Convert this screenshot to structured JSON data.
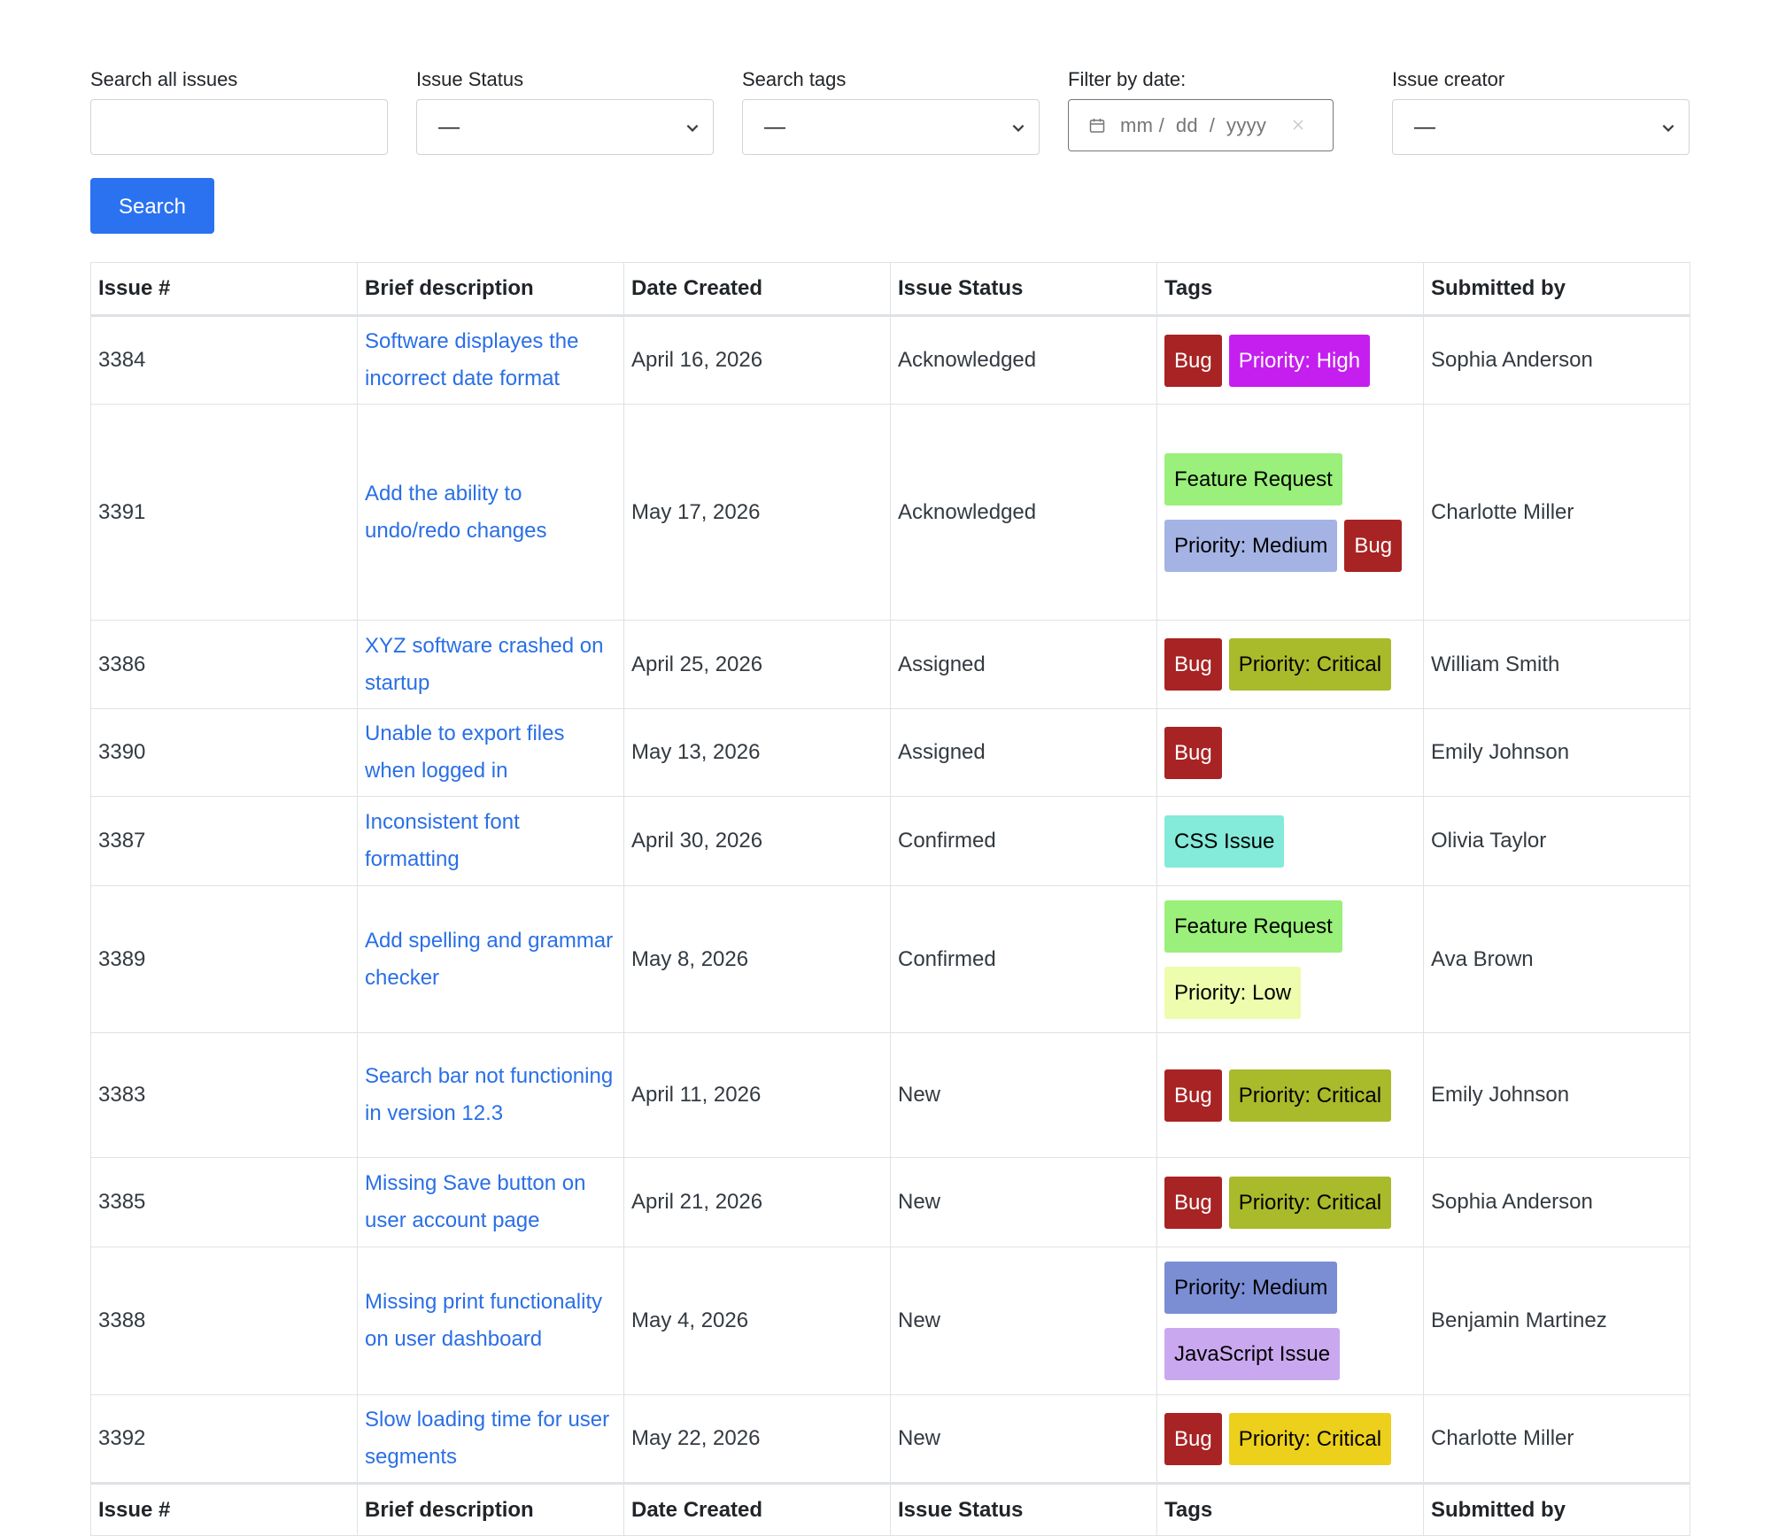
{
  "filters": {
    "search": {
      "label": "Search all issues",
      "value": ""
    },
    "status": {
      "label": "Issue Status",
      "value": "—"
    },
    "tags": {
      "label": "Search tags",
      "value": "—"
    },
    "date": {
      "label": "Filter by date:",
      "placeholder": "mm /  dd  /  yyyy"
    },
    "creator": {
      "label": "Issue creator",
      "value": "—"
    }
  },
  "search_button": "Search",
  "table": {
    "headers": [
      "Issue #",
      "Brief description",
      "Date Created",
      "Issue Status",
      "Tags",
      "Submitted by"
    ],
    "rows": [
      {
        "id": "3384",
        "desc": "Software displayes the incorrect date format",
        "date": "April 16, 2026",
        "status": "Acknowledged",
        "tags": [
          "Bug",
          "Priority: High"
        ],
        "by": "Sophia Anderson"
      },
      {
        "id": "3391",
        "desc": "Add the ability to undo/redo changes",
        "date": "May 17, 2026",
        "status": "Acknowledged",
        "tags": [
          "Feature Request",
          "Priority: Medium",
          "Bug"
        ],
        "by": "Charlotte Miller"
      },
      {
        "id": "3386",
        "desc": "XYZ software crashed on startup",
        "date": "April 25, 2026",
        "status": "Assigned",
        "tags": [
          "Bug",
          "Priority: Critical"
        ],
        "by": "William Smith"
      },
      {
        "id": "3390",
        "desc": "Unable to export files when logged in",
        "date": "May 13, 2026",
        "status": "Assigned",
        "tags": [
          "Bug"
        ],
        "by": "Emily Johnson"
      },
      {
        "id": "3387",
        "desc": "Inconsistent font formatting",
        "date": "April 30, 2026",
        "status": "Confirmed",
        "tags": [
          "CSS Issue"
        ],
        "by": "Olivia Taylor"
      },
      {
        "id": "3389",
        "desc": "Add spelling and grammar checker",
        "date": "May 8, 2026",
        "status": "Confirmed",
        "tags": [
          "Feature Request",
          "Priority: Low"
        ],
        "by": "Ava Brown"
      },
      {
        "id": "3383",
        "desc": "Search bar not functioning in version 12.3",
        "date": "April 11, 2026",
        "status": "New",
        "tags": [
          "Bug",
          "Priority: Critical"
        ],
        "by": "Emily Johnson"
      },
      {
        "id": "3385",
        "desc": "Missing Save button on user account page",
        "date": "April 21, 2026",
        "status": "New",
        "tags": [
          "Bug",
          "Priority: Critical"
        ],
        "by": "Sophia Anderson"
      },
      {
        "id": "3388",
        "desc": "Missing print functionality on user dashboard",
        "date": "May 4, 2026",
        "status": "New",
        "tags": [
          "Priority: Medium",
          "JavaScript Issue"
        ],
        "by": "Benjamin Martinez"
      },
      {
        "id": "3392",
        "desc": "Slow loading time for user segments",
        "date": "May 22, 2026",
        "status": "New",
        "tags": [
          "Bug",
          "Priority: Critical"
        ],
        "by": "Charlotte Miller"
      }
    ]
  },
  "tag_colors": {
    "Bug": "#a82323",
    "Priority: High": "#c51ff0",
    "Feature Request": "#9af07a",
    "Priority: Medium": "#a4b3e4",
    "Priority: Critical": "#a9ba2b",
    "CSS Issue": "#84ead9",
    "Priority: Low": "#edfcad",
    "Priority: Medium (alt)": "#7b8ed4",
    "JavaScript Issue": "#c9a8f0",
    "Priority: Critical (alt)": "#ecd01b"
  }
}
